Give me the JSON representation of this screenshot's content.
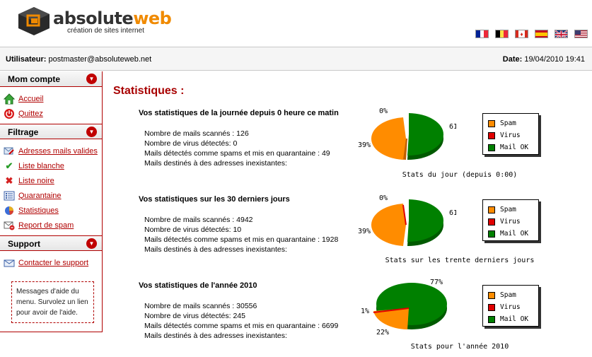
{
  "header": {
    "logo_main": "absolute",
    "logo_accent": "web",
    "logo_sub": "création de sites internet",
    "flags": [
      "fr",
      "be",
      "ca",
      "es",
      "gb",
      "us"
    ]
  },
  "userbar": {
    "user_label": "Utilisateur:",
    "user_value": "postmaster@absoluteweb.net",
    "date_label": "Date:",
    "date_value": "19/04/2010 19:41"
  },
  "sidebar": {
    "sections": [
      {
        "title": "Mom compte",
        "items": [
          {
            "label": "Accueil",
            "icon": "home-icon"
          },
          {
            "label": "Quittez",
            "icon": "power-icon"
          }
        ]
      },
      {
        "title": "Filtrage",
        "items": [
          {
            "label": "Adresses mails valides",
            "icon": "mail-check-icon"
          },
          {
            "label": "Liste blanche",
            "icon": "checkmark-icon"
          },
          {
            "label": "Liste noire",
            "icon": "cross-icon"
          },
          {
            "label": "Quarantaine",
            "icon": "list-icon"
          },
          {
            "label": "Statistiques",
            "icon": "stats-icon"
          },
          {
            "label": "Report de spam",
            "icon": "report-spam-icon"
          }
        ]
      },
      {
        "title": "Support",
        "items": [
          {
            "label": "Contacter le support",
            "icon": "envelope-icon"
          }
        ]
      }
    ],
    "help_text": "Messages d'aide du menu. Survolez un lien pour avoir de l'aide."
  },
  "main": {
    "title": "Statistiques :",
    "legend": {
      "spam": "Spam",
      "virus": "Virus",
      "ok": "Mail OK"
    },
    "colors": {
      "spam": "#ff8c00",
      "virus": "#e00000",
      "ok": "#008000",
      "accent": "#a80000"
    },
    "blocks": [
      {
        "title": "Vos statistiques de la journée depuis 0 heure ce matin",
        "lines": [
          "Nombre de mails scannés : 126",
          "Nombre de virus détectés: 0",
          "Mails détectés comme spams et mis en quarantaine : 49",
          "Mails destinés à des adresses inexistantes:"
        ],
        "caption": "Stats du jour (depuis 0:00)",
        "pct_spam": "39%",
        "pct_virus": "0%",
        "pct_ok": "61%"
      },
      {
        "title": "Vos statistiques sur les 30 derniers jours",
        "lines": [
          "Nombre de mails scannés : 4942",
          "Nombre de virus détectés: 10",
          "Mails détectés comme spams et mis en quarantaine : 1928",
          "Mails destinés à des adresses inexistantes:"
        ],
        "caption": "Stats sur les trente derniers jours",
        "pct_spam": "39%",
        "pct_virus": "0%",
        "pct_ok": "61%"
      },
      {
        "title": "Vos statistiques de l'année 2010",
        "lines": [
          "Nombre de mails scannés : 30556",
          "Nombre de virus détectés: 245",
          "Mails détectés comme spams et mis en quarantaine : 6699",
          "Mails destinés à des adresses inexistantes:"
        ],
        "caption": "Stats pour l'année 2010",
        "pct_spam": "22%",
        "pct_virus": "1%",
        "pct_ok": "77%"
      }
    ]
  }
}
